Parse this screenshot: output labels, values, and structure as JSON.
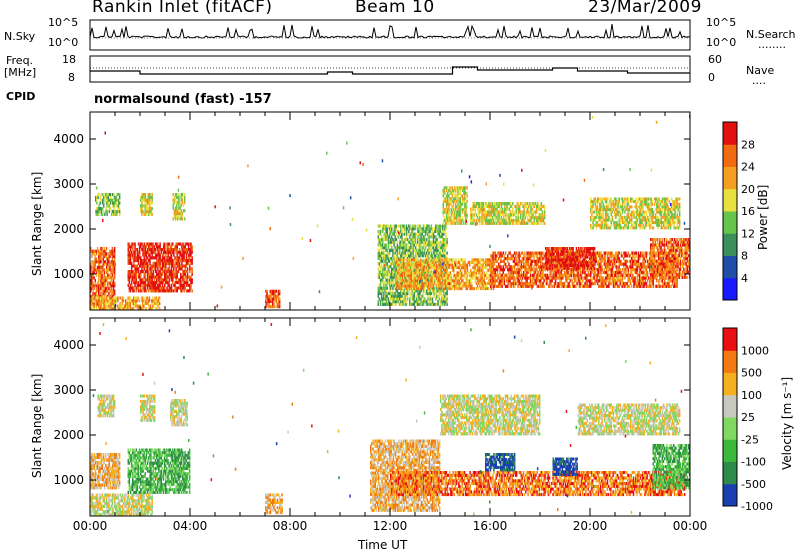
{
  "header": {
    "station": "Rankin Inlet (fitACF)",
    "beam": "Beam 10",
    "date": "23/Mar/2009"
  },
  "noise_panel": {
    "left_label": "N.Sky",
    "left_ticks": [
      "10^5",
      "10^0"
    ],
    "right_ticks": [
      "10^5",
      "10^0"
    ],
    "right_label": "N.Search",
    "right_legend": "........"
  },
  "freq_panel": {
    "left_label_1": "Freq.",
    "left_label_2": "[MHz]",
    "left_ticks": [
      "18",
      "8"
    ],
    "right_ticks": [
      "60",
      "0"
    ],
    "right_label": "Nave",
    "right_legend": "....",
    "cpid_label": "CPID",
    "cpid_text": "normalsound (fast) -157"
  },
  "chart_data": [
    {
      "type": "heatmap",
      "name": "power-panel",
      "ylabel": "Slant Range [km]",
      "yticks": [
        1000,
        2000,
        3000,
        4000
      ],
      "ylim": [
        200,
        4600
      ],
      "xlim_hours": [
        0,
        24
      ],
      "colorbar_label": "Power [dB]",
      "colorbar_ticks": [
        "28",
        "24",
        "20",
        "16",
        "12",
        "8",
        "4"
      ],
      "colorbar_colors": [
        "#1a1aff",
        "#1f4fa8",
        "#3a8f5a",
        "#66c44a",
        "#e8e040",
        "#f5a020",
        "#f26a10",
        "#e31010"
      ],
      "regions": [
        {
          "t0": 0.0,
          "t1": 1.0,
          "r0": 300,
          "r1": 1600,
          "level": 6
        },
        {
          "t0": 0.2,
          "t1": 1.2,
          "r0": 2300,
          "r1": 2800,
          "level": 3
        },
        {
          "t0": 1.5,
          "t1": 4.1,
          "r0": 600,
          "r1": 1700,
          "level": 7
        },
        {
          "t0": 2.0,
          "t1": 2.5,
          "r0": 2300,
          "r1": 2800,
          "level": 4
        },
        {
          "t0": 3.3,
          "t1": 3.8,
          "r0": 2200,
          "r1": 2800,
          "level": 4
        },
        {
          "t0": 0.0,
          "t1": 2.8,
          "r0": 200,
          "r1": 500,
          "level": 5
        },
        {
          "t0": 7.0,
          "t1": 7.6,
          "r0": 250,
          "r1": 650,
          "level": 6
        },
        {
          "t0": 11.5,
          "t1": 14.3,
          "r0": 300,
          "r1": 2100,
          "level": 3
        },
        {
          "t0": 12.2,
          "t1": 16.2,
          "r0": 650,
          "r1": 1350,
          "level": 5
        },
        {
          "t0": 14.1,
          "t1": 15.1,
          "r0": 2100,
          "r1": 2950,
          "level": 4
        },
        {
          "t0": 15.2,
          "t1": 18.2,
          "r0": 2100,
          "r1": 2600,
          "level": 4
        },
        {
          "t0": 16.0,
          "t1": 23.5,
          "r0": 700,
          "r1": 1500,
          "level": 6
        },
        {
          "t0": 18.2,
          "t1": 20.2,
          "r0": 1100,
          "r1": 1600,
          "level": 7
        },
        {
          "t0": 20.0,
          "t1": 23.6,
          "r0": 2000,
          "r1": 2700,
          "level": 4
        },
        {
          "t0": 22.4,
          "t1": 24.0,
          "r0": 900,
          "r1": 1800,
          "level": 6
        }
      ]
    },
    {
      "type": "heatmap",
      "name": "velocity-panel",
      "ylabel": "Slant Range [km]",
      "yticks": [
        1000,
        2000,
        3000,
        4000
      ],
      "ylim": [
        200,
        4600
      ],
      "xlim_hours": [
        0,
        24
      ],
      "xticks": [
        "00:00",
        "04:00",
        "08:00",
        "12:00",
        "16:00",
        "20:00",
        "00:00"
      ],
      "xlabel": "Time UT",
      "colorbar_label": "Velocity [m s⁻¹]",
      "colorbar_ticks": [
        "1000",
        "500",
        "100",
        "25",
        "-25",
        "-100",
        "-500",
        "-1000"
      ],
      "colorbar_colors": [
        "#1a3fb0",
        "#2d8a4a",
        "#3cb83c",
        "#7fd860",
        "#c8c8c0",
        "#f5b020",
        "#f27a10",
        "#e81010"
      ],
      "regions": [
        {
          "t0": 0.0,
          "t1": 1.2,
          "r0": 800,
          "r1": 1600,
          "level": 5
        },
        {
          "t0": 0.0,
          "t1": 2.5,
          "r0": 200,
          "r1": 700,
          "level": 4
        },
        {
          "t0": 0.3,
          "t1": 1.0,
          "r0": 2400,
          "r1": 2900,
          "level": 4
        },
        {
          "t0": 1.5,
          "t1": 4.0,
          "r0": 700,
          "r1": 1700,
          "level": 2
        },
        {
          "t0": 2.0,
          "t1": 2.6,
          "r0": 2300,
          "r1": 2900,
          "level": 4
        },
        {
          "t0": 3.2,
          "t1": 3.9,
          "r0": 2200,
          "r1": 2800,
          "level": 4
        },
        {
          "t0": 7.0,
          "t1": 7.7,
          "r0": 250,
          "r1": 700,
          "level": 5
        },
        {
          "t0": 11.2,
          "t1": 14.0,
          "r0": 300,
          "r1": 1900,
          "level": 5
        },
        {
          "t0": 12.0,
          "t1": 23.8,
          "r0": 650,
          "r1": 1200,
          "level": 6
        },
        {
          "t0": 14.0,
          "t1": 18.0,
          "r0": 2000,
          "r1": 2900,
          "level": 4
        },
        {
          "t0": 15.8,
          "t1": 17.0,
          "r0": 1200,
          "r1": 1600,
          "level": 0
        },
        {
          "t0": 18.5,
          "t1": 19.5,
          "r0": 1100,
          "r1": 1500,
          "level": 0
        },
        {
          "t0": 19.5,
          "t1": 23.6,
          "r0": 2000,
          "r1": 2700,
          "level": 4
        },
        {
          "t0": 22.5,
          "t1": 24.0,
          "r0": 800,
          "r1": 1800,
          "level": 2
        }
      ]
    }
  ]
}
